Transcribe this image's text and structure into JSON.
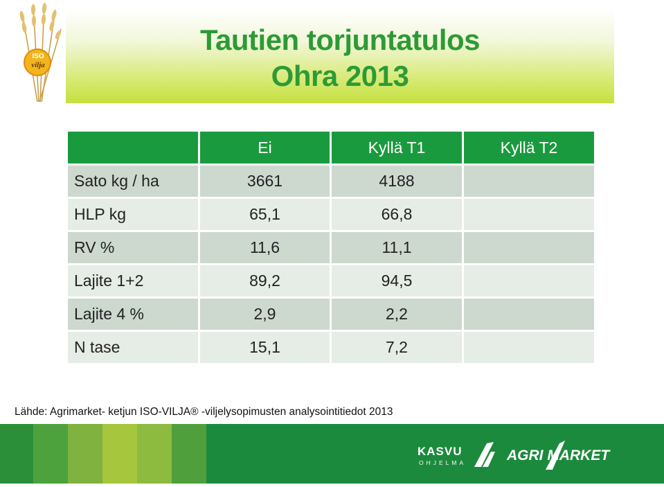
{
  "title": {
    "line1": "Tautien torjuntatulos",
    "line2": "Ohra 2013"
  },
  "logo": {
    "text_line1": "ISO",
    "text_line2": "vilja",
    "icon": "wheat-icon"
  },
  "table": {
    "columns": [
      "",
      "Ei",
      "Kyllä T1",
      "Kyllä T2"
    ],
    "rows": [
      {
        "label": "Sato kg / ha",
        "ei": "3661",
        "t1": "4188",
        "t2": ""
      },
      {
        "label": "HLP kg",
        "ei": "65,1",
        "t1": "66,8",
        "t2": ""
      },
      {
        "label": "RV %",
        "ei": "11,6",
        "t1": "11,1",
        "t2": ""
      },
      {
        "label": "Lajite 1+2",
        "ei": "89,2",
        "t1": "94,5",
        "t2": ""
      },
      {
        "label": "Lajite 4 %",
        "ei": "2,9",
        "t1": "2,2",
        "t2": ""
      },
      {
        "label": "N tase",
        "ei": "15,1",
        "t1": "7,2",
        "t2": ""
      }
    ]
  },
  "source": "Lähde: Agrimarket- ketjun ISO-VILJA® -viljelysopimusten analysointitiedot 2013",
  "footer": {
    "kasvu_line1": "KASVU",
    "kasvu_line2": "OHJELMA",
    "agrimarket": "AGRI MARKET"
  },
  "colors": {
    "title_green": "#2d9a36",
    "header_green": "#1a9a3e",
    "footer_green": "#1c8a3c",
    "row_dark": "#cdd8cf",
    "row_light": "#e6ece6"
  }
}
